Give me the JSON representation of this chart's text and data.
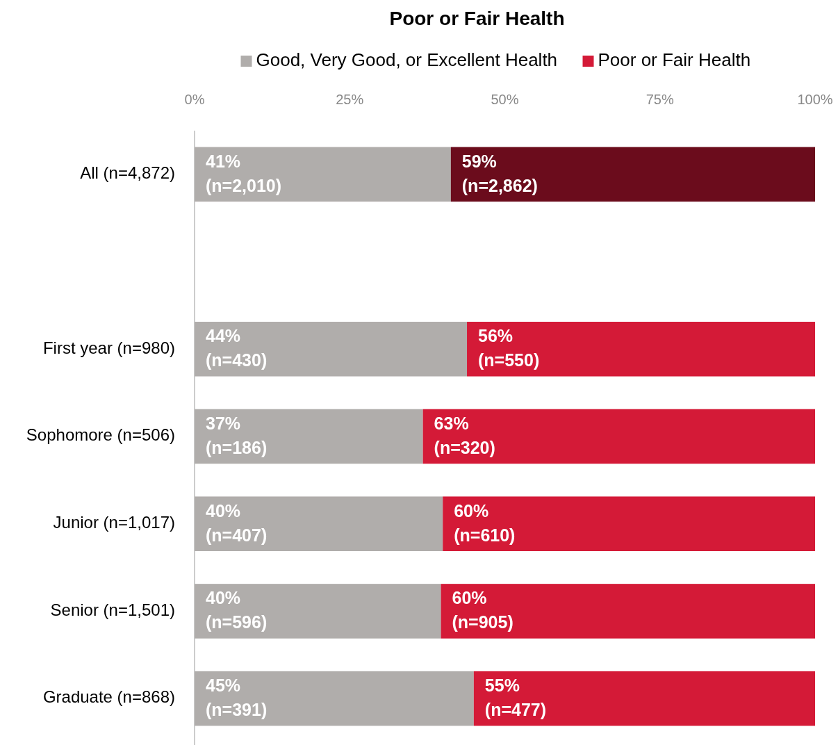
{
  "chart_data": {
    "type": "bar",
    "orientation": "horizontal",
    "stacked": true,
    "title": "Poor or Fair Health",
    "categories": [
      "All (n=4,872)",
      null,
      "First year (n=980)",
      "Sophomore (n=506)",
      "Junior (n=1,017)",
      "Senior (n=1,501)",
      "Graduate (n=868)"
    ],
    "series": [
      {
        "name": "Good, Very Good, or Excellent Health",
        "color": "#b0adab",
        "values": [
          41.3,
          null,
          43.9,
          36.8,
          40.0,
          39.7,
          45.0
        ],
        "value_labels": [
          "41%\n(n=2,010)",
          null,
          "44%\n(n=430)",
          "37%\n(n=186)",
          "40%\n(n=407)",
          "40%\n(n=596)",
          "45%\n(n=391)"
        ]
      },
      {
        "name": "Poor or Fair Health",
        "color": "#d41a37",
        "colors": [
          "#6b0c1c",
          null,
          "#d41a37",
          "#d41a37",
          "#d41a37",
          "#d41a37",
          "#d41a37"
        ],
        "values": [
          58.7,
          null,
          56.1,
          63.2,
          60.0,
          60.3,
          55.0
        ],
        "value_labels": [
          "59%\n(n=2,862)",
          null,
          "56%\n(n=550)",
          "63%\n(n=320)",
          "60%\n(n=610)",
          "60%\n(n=905)",
          "55%\n(n=477)"
        ]
      }
    ],
    "xlim": [
      0,
      100
    ],
    "xticks": [
      {
        "value": 0,
        "label": "0%"
      },
      {
        "value": 25,
        "label": "25%"
      },
      {
        "value": 50,
        "label": "50%"
      },
      {
        "value": 75,
        "label": "75%"
      },
      {
        "value": 100,
        "label": "100%"
      }
    ],
    "grid": false,
    "legend": "top"
  }
}
